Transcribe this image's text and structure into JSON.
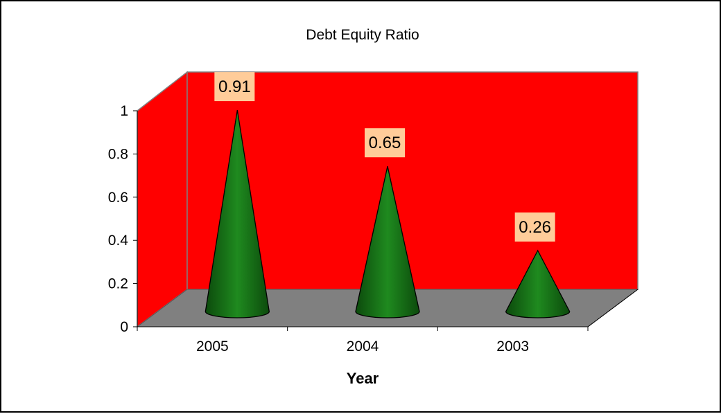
{
  "chart_data": {
    "type": "bar",
    "style": "3d-cone",
    "title": "Debt Equity Ratio",
    "xlabel": "Year",
    "ylabel": "",
    "categories": [
      "2005",
      "2004",
      "2003"
    ],
    "values": [
      0.91,
      0.65,
      0.26
    ],
    "data_labels": [
      "0.91",
      "0.65",
      "0.26"
    ],
    "ylim": [
      0,
      1
    ],
    "y_ticks": [
      "0",
      "0.2",
      "0.4",
      "0.6",
      "0.8",
      "1"
    ],
    "legend": "none",
    "grid": false,
    "colors": {
      "wall": "#ff0000",
      "floor": "#808080",
      "cone": "#1a7a1a",
      "label_bg": "#ffcc99"
    }
  }
}
